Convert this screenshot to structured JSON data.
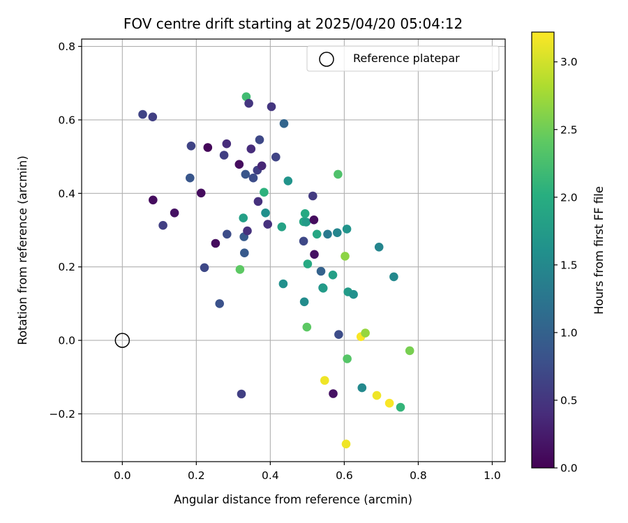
{
  "chart_data": {
    "type": "scatter",
    "title": "FOV centre drift starting at 2025/04/20 05:04:12",
    "xlabel": "Angular distance from reference (arcmin)",
    "ylabel": "Rotation from reference (arcmin)",
    "xlim": [
      -0.11,
      1.035
    ],
    "ylim": [
      -0.33,
      0.82
    ],
    "xticks": [
      0.0,
      0.2,
      0.4,
      0.6,
      0.8,
      1.0
    ],
    "xtick_labels": [
      "0.0",
      "0.2",
      "0.4",
      "0.6",
      "0.8",
      "1.0"
    ],
    "yticks": [
      -0.2,
      0.0,
      0.2,
      0.4,
      0.6,
      0.8
    ],
    "ytick_labels": [
      "−0.2",
      "0.0",
      "0.2",
      "0.4",
      "0.6",
      "0.8"
    ],
    "grid": true,
    "legend": {
      "placement": "top-right",
      "entries": [
        "Reference platepar"
      ]
    },
    "reference": {
      "label": "Reference platepar",
      "x": 0.0,
      "y": 0.0
    },
    "colorbar": {
      "label": "Hours from first FF file",
      "colormap": "viridis",
      "range": [
        0.0,
        3.22
      ],
      "ticks": [
        0.0,
        0.5,
        1.0,
        1.5,
        2.0,
        2.5,
        3.0
      ],
      "tick_labels": [
        "0.0",
        "0.5",
        "1.0",
        "1.5",
        "2.0",
        "2.5",
        "3.0"
      ]
    },
    "points": [
      {
        "x": 0.055,
        "y": 0.615,
        "h": 0.65
      },
      {
        "x": 0.082,
        "y": 0.608,
        "h": 0.6
      },
      {
        "x": 0.083,
        "y": 0.382,
        "h": 0.1
      },
      {
        "x": 0.11,
        "y": 0.313,
        "h": 0.6
      },
      {
        "x": 0.141,
        "y": 0.347,
        "h": 0.15
      },
      {
        "x": 0.183,
        "y": 0.442,
        "h": 0.85
      },
      {
        "x": 0.186,
        "y": 0.529,
        "h": 0.65
      },
      {
        "x": 0.213,
        "y": 0.401,
        "h": 0.1
      },
      {
        "x": 0.222,
        "y": 0.198,
        "h": 0.7
      },
      {
        "x": 0.231,
        "y": 0.525,
        "h": 0.05
      },
      {
        "x": 0.252,
        "y": 0.264,
        "h": 0.1
      },
      {
        "x": 0.263,
        "y": 0.1,
        "h": 0.8
      },
      {
        "x": 0.275,
        "y": 0.504,
        "h": 0.6
      },
      {
        "x": 0.282,
        "y": 0.535,
        "h": 0.4
      },
      {
        "x": 0.283,
        "y": 0.289,
        "h": 0.75
      },
      {
        "x": 0.316,
        "y": 0.479,
        "h": 0.1
      },
      {
        "x": 0.318,
        "y": 0.193,
        "h": 2.4
      },
      {
        "x": 0.322,
        "y": -0.146,
        "h": 0.6
      },
      {
        "x": 0.327,
        "y": 0.333,
        "h": 1.8
      },
      {
        "x": 0.329,
        "y": 0.282,
        "h": 0.9
      },
      {
        "x": 0.33,
        "y": 0.238,
        "h": 0.9
      },
      {
        "x": 0.333,
        "y": 0.452,
        "h": 0.85
      },
      {
        "x": 0.335,
        "y": 0.663,
        "h": 2.2
      },
      {
        "x": 0.338,
        "y": 0.298,
        "h": 0.45
      },
      {
        "x": 0.342,
        "y": 0.645,
        "h": 0.5
      },
      {
        "x": 0.348,
        "y": 0.521,
        "h": 0.4
      },
      {
        "x": 0.354,
        "y": 0.442,
        "h": 0.75
      },
      {
        "x": 0.365,
        "y": 0.463,
        "h": 0.6
      },
      {
        "x": 0.367,
        "y": 0.378,
        "h": 0.45
      },
      {
        "x": 0.371,
        "y": 0.546,
        "h": 0.7
      },
      {
        "x": 0.377,
        "y": 0.475,
        "h": 0.35
      },
      {
        "x": 0.383,
        "y": 0.403,
        "h": 2.05
      },
      {
        "x": 0.387,
        "y": 0.347,
        "h": 1.6
      },
      {
        "x": 0.393,
        "y": 0.316,
        "h": 0.45
      },
      {
        "x": 0.403,
        "y": 0.636,
        "h": 0.5
      },
      {
        "x": 0.415,
        "y": 0.499,
        "h": 0.65
      },
      {
        "x": 0.431,
        "y": 0.309,
        "h": 1.85
      },
      {
        "x": 0.435,
        "y": 0.154,
        "h": 1.6
      },
      {
        "x": 0.437,
        "y": 0.59,
        "h": 1.05
      },
      {
        "x": 0.448,
        "y": 0.434,
        "h": 1.65
      },
      {
        "x": 0.49,
        "y": 0.323,
        "h": 1.9
      },
      {
        "x": 0.49,
        "y": 0.27,
        "h": 0.7
      },
      {
        "x": 0.492,
        "y": 0.105,
        "h": 1.55
      },
      {
        "x": 0.494,
        "y": 0.345,
        "h": 1.95
      },
      {
        "x": 0.497,
        "y": 0.322,
        "h": 1.75
      },
      {
        "x": 0.499,
        "y": 0.036,
        "h": 2.4
      },
      {
        "x": 0.501,
        "y": 0.208,
        "h": 1.95
      },
      {
        "x": 0.515,
        "y": 0.393,
        "h": 0.55
      },
      {
        "x": 0.518,
        "y": 0.328,
        "h": 0.1
      },
      {
        "x": 0.519,
        "y": 0.234,
        "h": 0.15
      },
      {
        "x": 0.526,
        "y": 0.289,
        "h": 1.9
      },
      {
        "x": 0.537,
        "y": 0.188,
        "h": 1.0
      },
      {
        "x": 0.542,
        "y": 0.143,
        "h": 1.5
      },
      {
        "x": 0.543,
        "y": 0.142,
        "h": 1.75
      },
      {
        "x": 0.547,
        "y": -0.109,
        "h": 3.15
      },
      {
        "x": 0.555,
        "y": 0.289,
        "h": 1.3
      },
      {
        "x": 0.569,
        "y": 0.178,
        "h": 1.8
      },
      {
        "x": 0.57,
        "y": -0.145,
        "h": 0.15
      },
      {
        "x": 0.581,
        "y": 0.293,
        "h": 1.45
      },
      {
        "x": 0.583,
        "y": 0.452,
        "h": 2.3
      },
      {
        "x": 0.585,
        "y": 0.016,
        "h": 0.75
      },
      {
        "x": 0.602,
        "y": 0.229,
        "h": 2.65
      },
      {
        "x": 0.605,
        "y": -0.282,
        "h": 3.15
      },
      {
        "x": 0.607,
        "y": 0.303,
        "h": 1.65
      },
      {
        "x": 0.608,
        "y": -0.05,
        "h": 2.35
      },
      {
        "x": 0.61,
        "y": 0.132,
        "h": 1.75
      },
      {
        "x": 0.625,
        "y": 0.125,
        "h": 1.6
      },
      {
        "x": 0.645,
        "y": 0.01,
        "h": 3.2
      },
      {
        "x": 0.648,
        "y": -0.129,
        "h": 1.5
      },
      {
        "x": 0.657,
        "y": 0.02,
        "h": 2.7
      },
      {
        "x": 0.688,
        "y": -0.15,
        "h": 3.15
      },
      {
        "x": 0.694,
        "y": 0.254,
        "h": 1.45
      },
      {
        "x": 0.722,
        "y": -0.171,
        "h": 3.2
      },
      {
        "x": 0.734,
        "y": 0.173,
        "h": 1.5
      },
      {
        "x": 0.752,
        "y": -0.182,
        "h": 2.1
      },
      {
        "x": 0.777,
        "y": -0.028,
        "h": 2.55
      }
    ]
  }
}
